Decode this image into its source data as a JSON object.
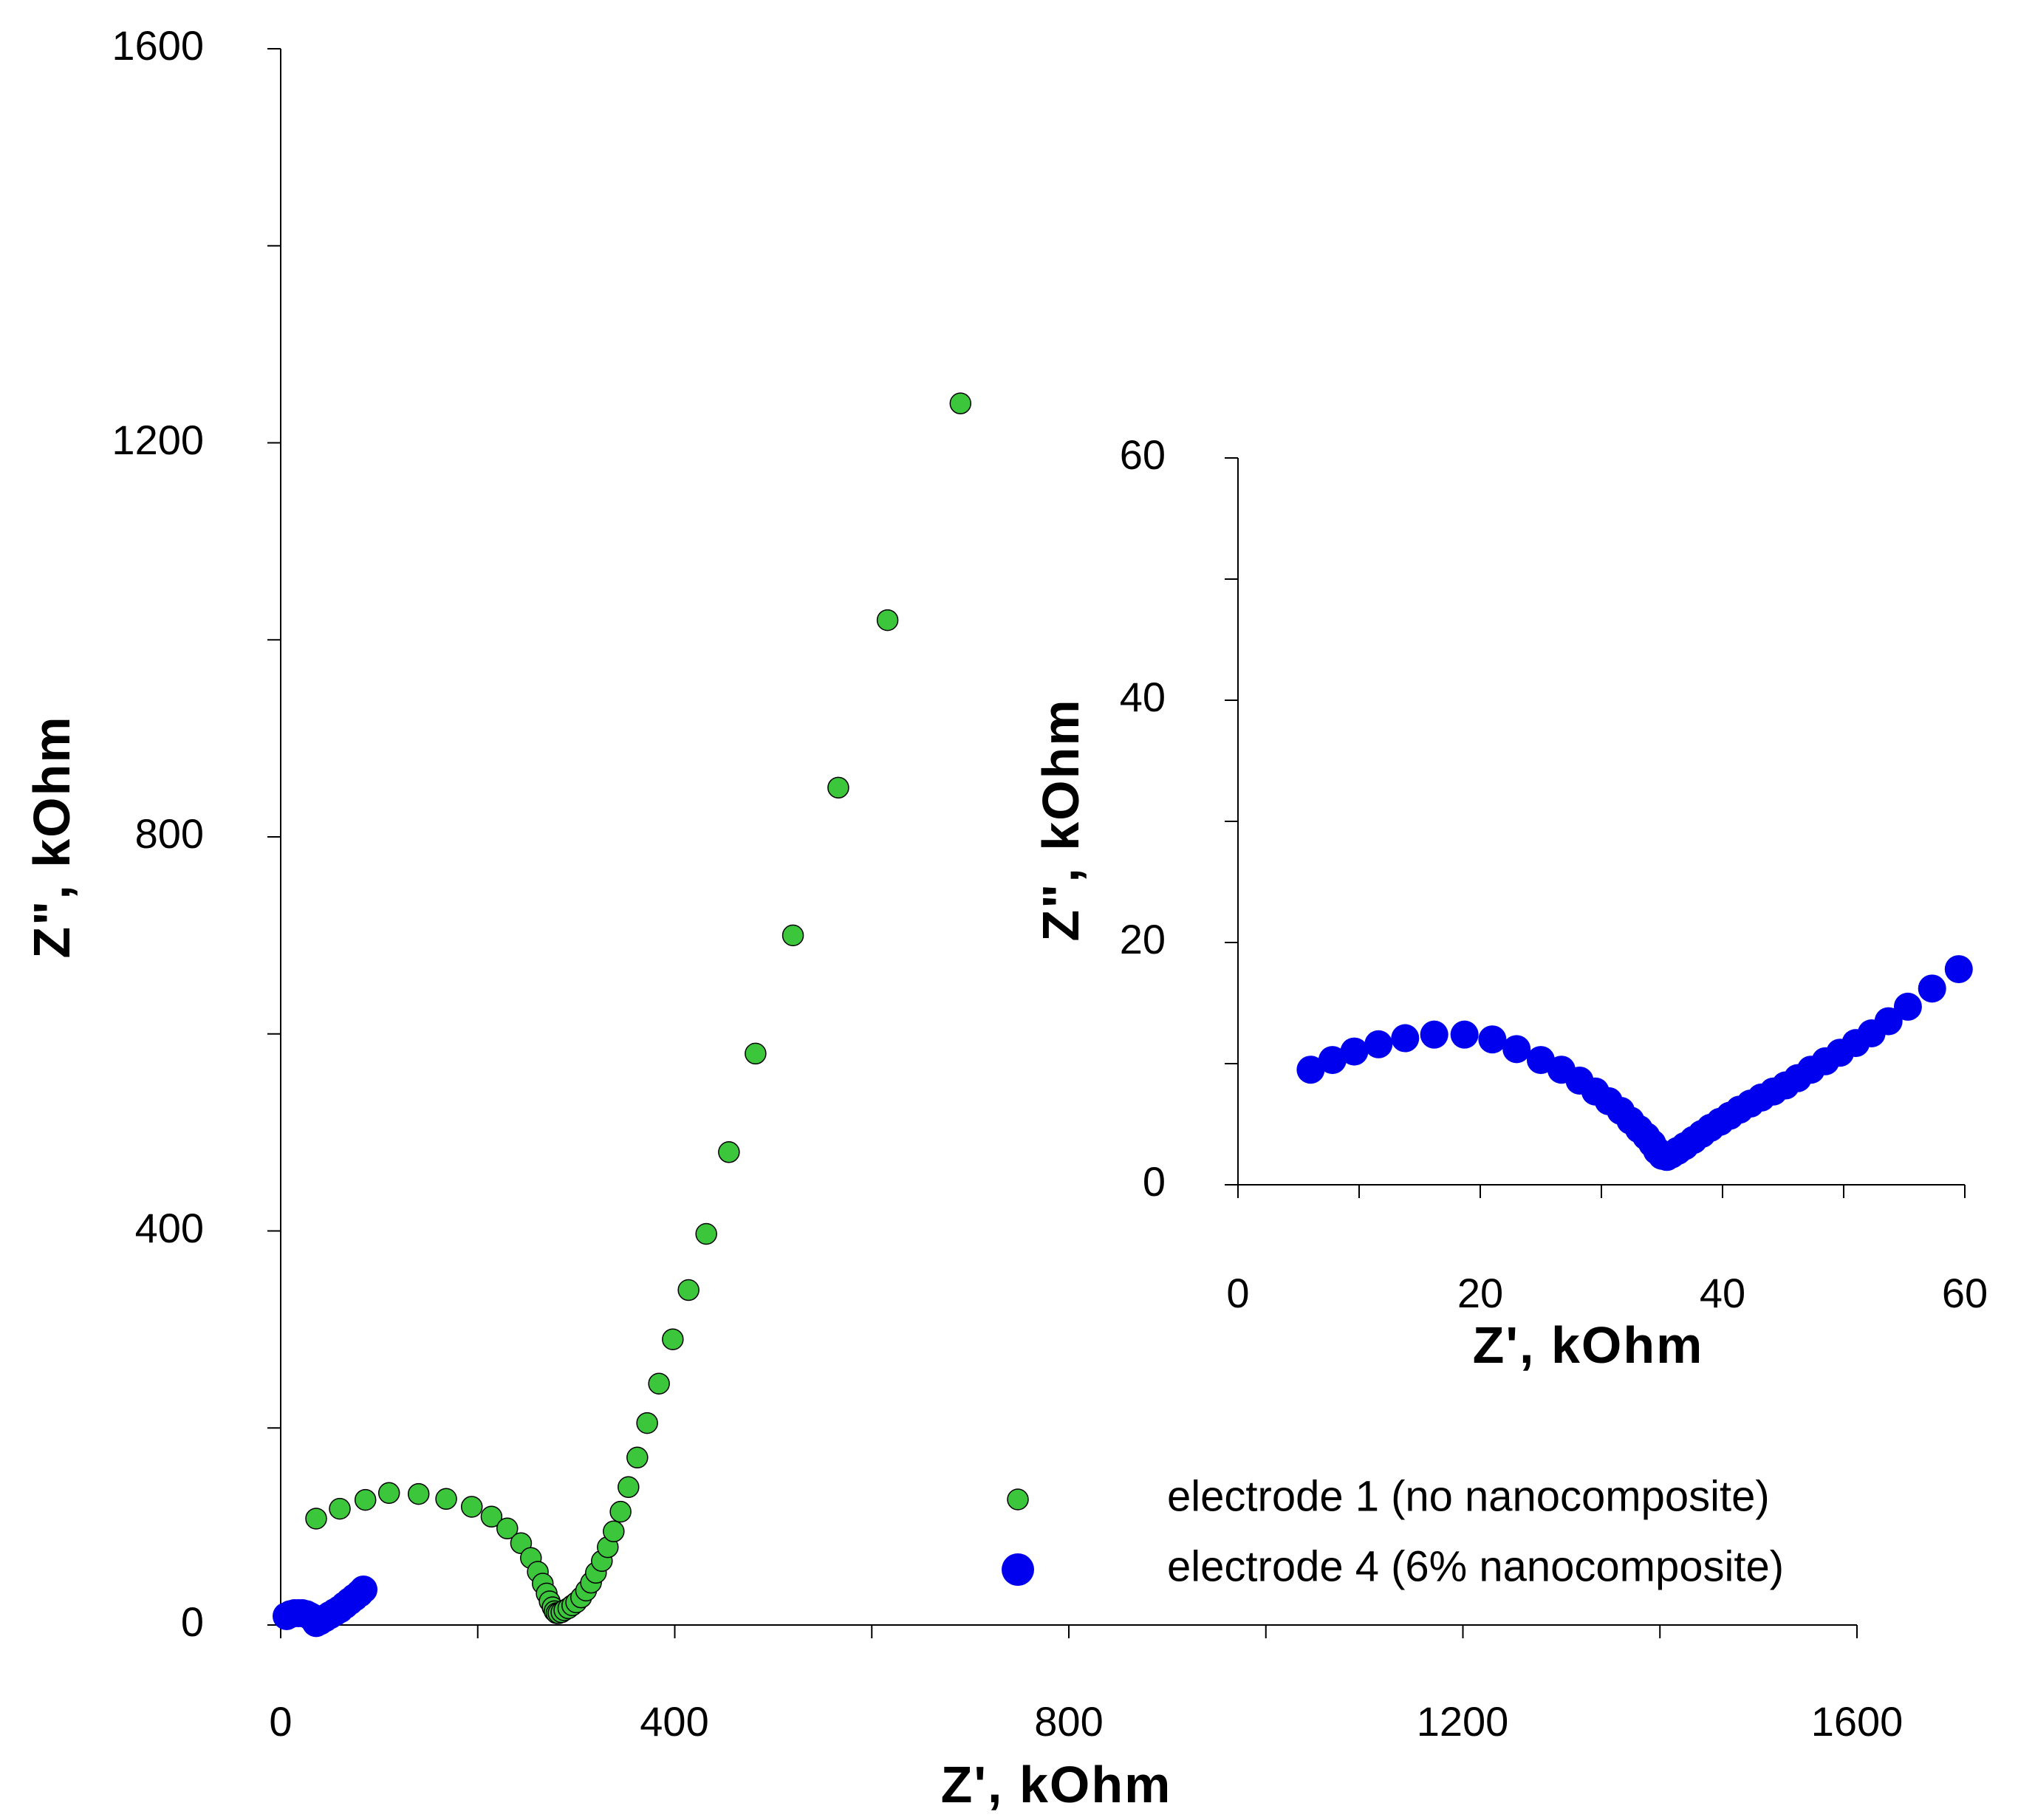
{
  "colors": {
    "green": "#3cc63c",
    "blue": "#0000ee",
    "axis": "#000000"
  },
  "chart_data": [
    {
      "type": "scatter",
      "title": "",
      "xlabel": "Z', kOhm",
      "ylabel": "Z\", kOhm",
      "xlim": [
        0,
        1600
      ],
      "ylim": [
        0,
        1600
      ],
      "xticks": [
        "0",
        "400",
        "800",
        "1200",
        "1600"
      ],
      "yticks": [
        "0",
        "400",
        "800",
        "1200",
        "1600"
      ],
      "grid": false,
      "legend_position": "bottom-right",
      "series": [
        {
          "name": "electrode 1 (no nanocomposite)",
          "marker": "circle-small",
          "color": "#3cc63c",
          "x": [
            36,
            60,
            86,
            110,
            140,
            168,
            194,
            214,
            230,
            244,
            254,
            261,
            266,
            270,
            273,
            276,
            278,
            280,
            282,
            285,
            288,
            292,
            296,
            300,
            305,
            310,
            315,
            320,
            326,
            332,
            338,
            345,
            353,
            362,
            372,
            384,
            398,
            414,
            432,
            455,
            482,
            520,
            566,
            616,
            690
          ],
          "y": [
            108,
            118,
            127,
            134,
            133,
            128,
            120,
            110,
            98,
            83,
            68,
            54,
            42,
            32,
            24,
            18,
            14,
            12,
            12,
            13,
            15,
            17,
            20,
            23,
            28,
            35,
            43,
            53,
            65,
            79,
            95,
            115,
            140,
            170,
            205,
            245,
            290,
            340,
            397,
            480,
            580,
            700,
            850,
            1020,
            1240
          ]
        },
        {
          "name": "electrode 4 (6% nanocomposite)",
          "marker": "circle-large",
          "color": "#0000ee",
          "x": [
            6,
            10,
            14,
            18,
            22,
            26,
            30,
            34,
            36,
            40,
            45,
            50,
            55,
            60,
            65,
            70,
            75,
            80,
            84
          ],
          "y": [
            9,
            11,
            12,
            12,
            12,
            11,
            9,
            5,
            2,
            4,
            7,
            10,
            13,
            16,
            20,
            24,
            28,
            32,
            36
          ]
        }
      ]
    },
    {
      "type": "scatter",
      "title": "",
      "xlabel": "Z', kOhm",
      "ylabel": "Z\", kOhm",
      "xlim": [
        0,
        60
      ],
      "ylim": [
        0,
        60
      ],
      "xticks": [
        "0",
        "20",
        "40",
        "60"
      ],
      "yticks": [
        "0",
        "20",
        "40",
        "60"
      ],
      "grid": false,
      "series": [
        {
          "marker": "circle-large",
          "color": "#0000ee",
          "x": [
            6,
            7.8,
            9.6,
            11.6,
            13.8,
            16.2,
            18.7,
            21,
            23,
            25,
            26.7,
            28.2,
            29.5,
            30.6,
            31.6,
            32.4,
            33.1,
            33.7,
            34.2,
            34.6,
            35,
            35.4,
            35.8,
            36.3,
            36.9,
            37.6,
            38.3,
            39,
            39.8,
            40.6,
            41.4,
            42.3,
            43.2,
            44.2,
            45.2,
            46.2,
            47.3,
            48.5,
            49.7,
            51,
            52.3,
            53.7,
            55.3,
            57.3,
            59.5
          ],
          "y": [
            9.5,
            10.3,
            11,
            11.6,
            12.1,
            12.4,
            12.4,
            12,
            11.2,
            10.3,
            9.5,
            8.6,
            7.7,
            6.9,
            6.1,
            5.3,
            4.6,
            4,
            3.4,
            2.8,
            2.4,
            2.3,
            2.5,
            2.8,
            3.2,
            3.7,
            4.2,
            4.7,
            5.2,
            5.7,
            6.2,
            6.7,
            7.2,
            7.7,
            8.2,
            8.8,
            9.5,
            10.2,
            10.9,
            11.7,
            12.5,
            13.5,
            14.7,
            16.2,
            17.8
          ]
        }
      ]
    }
  ]
}
